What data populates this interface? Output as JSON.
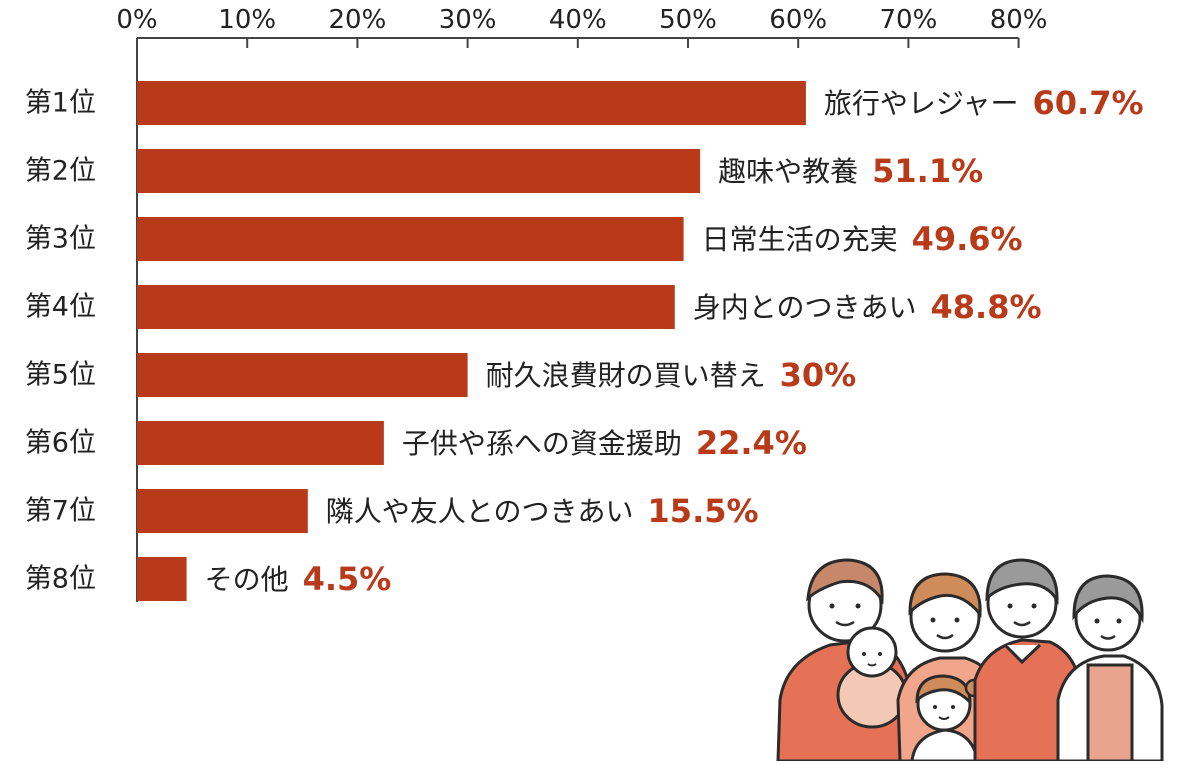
{
  "chart_data": {
    "type": "bar",
    "orientation": "horizontal",
    "xlim": [
      0,
      80
    ],
    "x_ticks": [
      0,
      10,
      20,
      30,
      40,
      50,
      60,
      70,
      80
    ],
    "x_tick_labels": [
      "0%",
      "10%",
      "20%",
      "30%",
      "40%",
      "50%",
      "60%",
      "70%",
      "80%"
    ],
    "axis_position": "top",
    "grid": false,
    "ranks": [
      "第1位",
      "第2位",
      "第3位",
      "第4位",
      "第5位",
      "第6位",
      "第7位",
      "第8位"
    ],
    "categories": [
      "旅行やレジャー",
      "趣味や教養",
      "日常生活の充実",
      "身内とのつきあい",
      "耐久浪費財の買い替え",
      "子供や孫への資金援助",
      "隣人や友人とのつきあい",
      "その他"
    ],
    "values": [
      60.7,
      51.1,
      49.6,
      48.8,
      30,
      22.4,
      15.5,
      4.5
    ],
    "value_labels": [
      "60.7%",
      "51.1%",
      "49.6%",
      "48.8%",
      "30%",
      "22.4%",
      "15.5%",
      "4.5%"
    ],
    "title": "",
    "xlabel": "",
    "ylabel": ""
  },
  "colors": {
    "bar": "#B93A18",
    "value_text": "#B93A18",
    "axis": "#444444",
    "text": "#222222"
  },
  "illustration": {
    "icon": "family-illustration-icon"
  }
}
